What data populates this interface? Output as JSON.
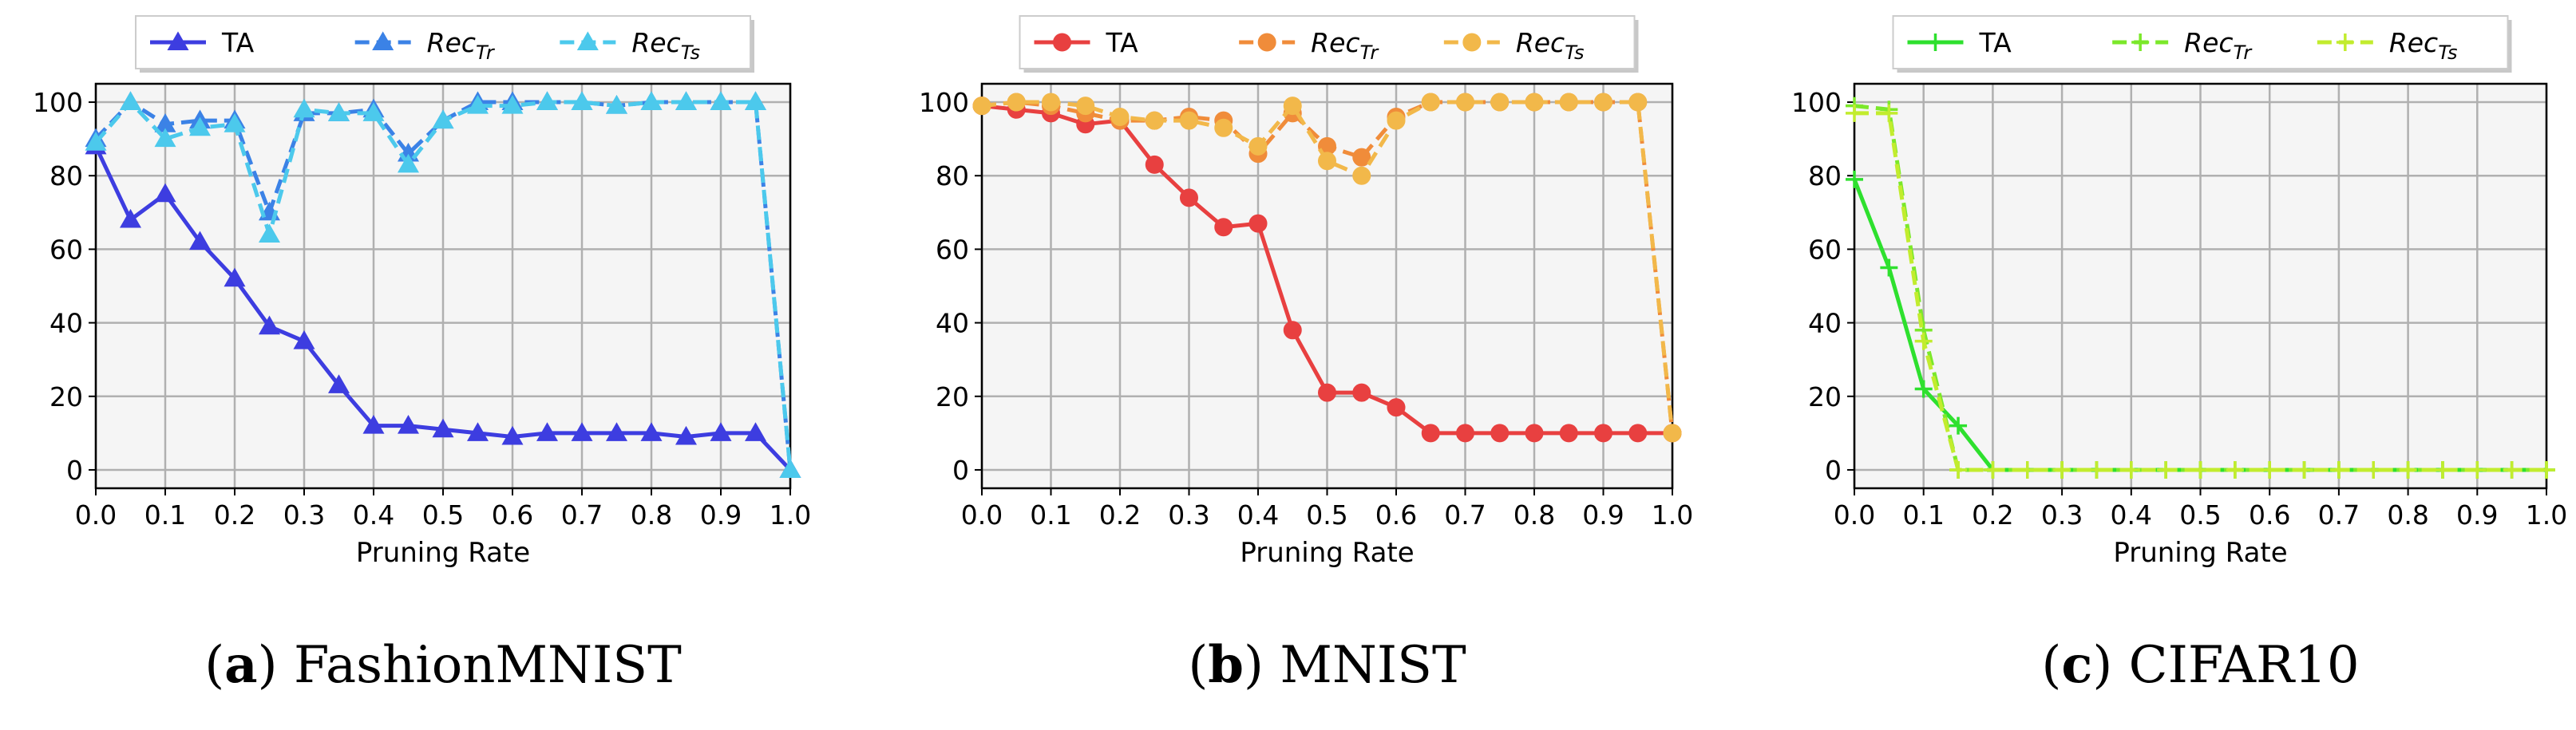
{
  "chart_data": [
    {
      "type": "line",
      "caption_letter": "a",
      "caption_text": "FashionMNIST",
      "xlabel": "Pruning Rate",
      "ylabel": "",
      "xlim": [
        0,
        1
      ],
      "ylim": [
        -5,
        105
      ],
      "xticks": [
        "0.0",
        "0.1",
        "0.2",
        "0.3",
        "0.4",
        "0.5",
        "0.6",
        "0.7",
        "0.8",
        "0.9",
        "1.0"
      ],
      "yticks": [
        "0",
        "20",
        "40",
        "60",
        "80",
        "100"
      ],
      "grid": true,
      "legend_position": "top-center",
      "x": [
        0,
        0.05,
        0.1,
        0.15,
        0.2,
        0.25,
        0.3,
        0.35,
        0.4,
        0.45,
        0.5,
        0.55,
        0.6,
        0.65,
        0.7,
        0.75,
        0.8,
        0.85,
        0.9,
        0.95,
        1.0
      ],
      "series": [
        {
          "name": "TA",
          "base": "TA",
          "sub": "",
          "color": "#3d3de0",
          "dash": false,
          "marker": "triangle",
          "values": [
            88,
            68,
            75,
            62,
            52,
            39,
            35,
            23,
            12,
            12,
            11,
            10,
            9,
            10,
            10,
            10,
            10,
            9,
            10,
            10,
            0
          ]
        },
        {
          "name": "RecTr",
          "base": "Rec",
          "sub": "Tr",
          "color": "#3b82e6",
          "dash": true,
          "marker": "triangle",
          "values": [
            90,
            100,
            94,
            95,
            95,
            70,
            97,
            97,
            98,
            86,
            95,
            100,
            100,
            100,
            100,
            99,
            100,
            100,
            100,
            100,
            0
          ]
        },
        {
          "name": "RecTs",
          "base": "Rec",
          "sub": "Ts",
          "color": "#4cc9ec",
          "dash": true,
          "marker": "triangle",
          "values": [
            89,
            100,
            90,
            93,
            94,
            64,
            98,
            97,
            97,
            83,
            95,
            99,
            99,
            100,
            100,
            99,
            100,
            100,
            100,
            100,
            0
          ]
        }
      ]
    },
    {
      "type": "line",
      "caption_letter": "b",
      "caption_text": "MNIST",
      "xlabel": "Pruning Rate",
      "ylabel": "",
      "xlim": [
        0,
        1
      ],
      "ylim": [
        -5,
        105
      ],
      "xticks": [
        "0.0",
        "0.1",
        "0.2",
        "0.3",
        "0.4",
        "0.5",
        "0.6",
        "0.7",
        "0.8",
        "0.9",
        "1.0"
      ],
      "yticks": [
        "0",
        "20",
        "40",
        "60",
        "80",
        "100"
      ],
      "grid": true,
      "legend_position": "top-center",
      "x": [
        0,
        0.05,
        0.1,
        0.15,
        0.2,
        0.25,
        0.3,
        0.35,
        0.4,
        0.45,
        0.5,
        0.55,
        0.6,
        0.65,
        0.7,
        0.75,
        0.8,
        0.85,
        0.9,
        0.95,
        1.0
      ],
      "series": [
        {
          "name": "TA",
          "base": "TA",
          "sub": "",
          "color": "#e84040",
          "dash": false,
          "marker": "circle",
          "values": [
            99,
            98,
            97,
            94,
            95,
            83,
            74,
            66,
            67,
            38,
            21,
            21,
            17,
            10,
            10,
            10,
            10,
            10,
            10,
            10,
            10
          ]
        },
        {
          "name": "RecTr",
          "base": "Rec",
          "sub": "Tr",
          "color": "#f08c3a",
          "dash": true,
          "marker": "circle",
          "values": [
            99,
            100,
            99,
            97,
            95,
            95,
            96,
            95,
            86,
            97,
            88,
            85,
            96,
            100,
            100,
            100,
            100,
            100,
            100,
            100,
            10
          ]
        },
        {
          "name": "RecTs",
          "base": "Rec",
          "sub": "Ts",
          "color": "#f2b84a",
          "dash": true,
          "marker": "circle",
          "values": [
            99,
            100,
            100,
            99,
            96,
            95,
            95,
            93,
            88,
            99,
            84,
            80,
            95,
            100,
            100,
            100,
            100,
            100,
            100,
            100,
            10
          ]
        }
      ]
    },
    {
      "type": "line",
      "caption_letter": "c",
      "caption_text": "CIFAR10",
      "xlabel": "Pruning Rate",
      "ylabel": "",
      "xlim": [
        0,
        1
      ],
      "ylim": [
        -5,
        105
      ],
      "xticks": [
        "0.0",
        "0.1",
        "0.2",
        "0.3",
        "0.4",
        "0.5",
        "0.6",
        "0.7",
        "0.8",
        "0.9",
        "1.0"
      ],
      "yticks": [
        "0",
        "20",
        "40",
        "60",
        "80",
        "100"
      ],
      "grid": true,
      "legend_position": "top-center",
      "x": [
        0,
        0.05,
        0.1,
        0.15,
        0.2,
        0.25,
        0.3,
        0.35,
        0.4,
        0.45,
        0.5,
        0.55,
        0.6,
        0.65,
        0.7,
        0.75,
        0.8,
        0.85,
        0.9,
        0.95,
        1.0
      ],
      "series": [
        {
          "name": "TA",
          "base": "TA",
          "sub": "",
          "color": "#2ee02e",
          "dash": false,
          "marker": "plus",
          "values": [
            79,
            55,
            22,
            12,
            0,
            0,
            0,
            0,
            0,
            0,
            0,
            0,
            0,
            0,
            0,
            0,
            0,
            0,
            0,
            0,
            0
          ]
        },
        {
          "name": "RecTr",
          "base": "Rec",
          "sub": "Tr",
          "color": "#7be82a",
          "dash": true,
          "marker": "plus",
          "values": [
            99,
            98,
            38,
            0,
            0,
            0,
            0,
            0,
            0,
            0,
            0,
            0,
            0,
            0,
            0,
            0,
            0,
            0,
            0,
            0,
            0
          ]
        },
        {
          "name": "RecTs",
          "base": "Rec",
          "sub": "Ts",
          "color": "#c2ec2e",
          "dash": true,
          "marker": "plus",
          "values": [
            97,
            97,
            35,
            0,
            0,
            0,
            0,
            0,
            0,
            0,
            0,
            0,
            0,
            0,
            0,
            0,
            0,
            0,
            0,
            0,
            0
          ]
        }
      ]
    }
  ]
}
